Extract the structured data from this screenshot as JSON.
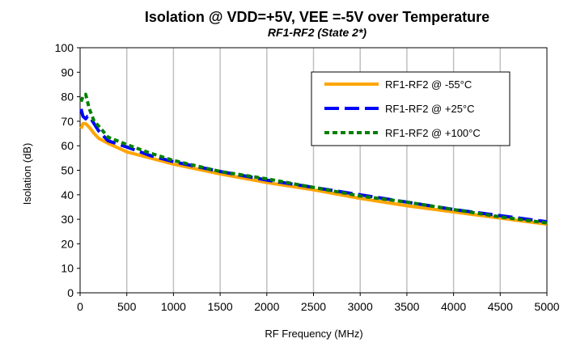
{
  "chart_data": {
    "type": "line",
    "title": "Isolation @ VDD=+5V, VEE =-5V over Temperature",
    "subtitle": "RF1-RF2 (State 2*)",
    "xlabel": "RF Frequency (MHz)",
    "ylabel": "Isolation (dB)",
    "xlim": [
      0,
      5000
    ],
    "ylim": [
      0,
      100
    ],
    "xticks": [
      0,
      500,
      1000,
      1500,
      2000,
      2500,
      3000,
      3500,
      4000,
      4500,
      5000
    ],
    "yticks": [
      0,
      10,
      20,
      30,
      40,
      50,
      60,
      70,
      80,
      90,
      100
    ],
    "grid": "vertical",
    "legend_position": "top-right",
    "series": [
      {
        "name": "RF1-RF2 @ -55°C",
        "color": "#FFA500",
        "style": "solid",
        "x": [
          10,
          30,
          60,
          100,
          150,
          200,
          300,
          500,
          750,
          1000,
          1500,
          2000,
          2500,
          3000,
          3500,
          4000,
          4500,
          5000
        ],
        "y": [
          67,
          69,
          69,
          67.5,
          65,
          63,
          61,
          57.5,
          55,
          52.5,
          48.5,
          45,
          42,
          38.5,
          35.5,
          33,
          30.5,
          28
        ]
      },
      {
        "name": "RF1-RF2 @ +25°C",
        "color": "#0000FF",
        "style": "dash",
        "x": [
          10,
          30,
          60,
          80,
          100,
          150,
          200,
          300,
          500,
          750,
          1000,
          1500,
          2000,
          2500,
          3000,
          3500,
          4000,
          4500,
          5000
        ],
        "y": [
          75,
          72,
          71,
          72,
          72,
          69,
          66,
          62,
          59.5,
          56,
          53.5,
          49.5,
          46,
          43,
          40,
          37,
          34,
          31.5,
          29
        ]
      },
      {
        "name": "RF1-RF2 @ +100°C",
        "color": "#008000",
        "style": "dot",
        "x": [
          10,
          30,
          60,
          80,
          100,
          150,
          200,
          300,
          500,
          750,
          1000,
          1500,
          2000,
          2500,
          3000,
          3500,
          4000,
          4500,
          5000
        ],
        "y": [
          78,
          80,
          81,
          78,
          75,
          70,
          68,
          63.5,
          60.5,
          57,
          54,
          49.5,
          46.5,
          43,
          39.5,
          37,
          34,
          31,
          28.5
        ]
      }
    ]
  }
}
